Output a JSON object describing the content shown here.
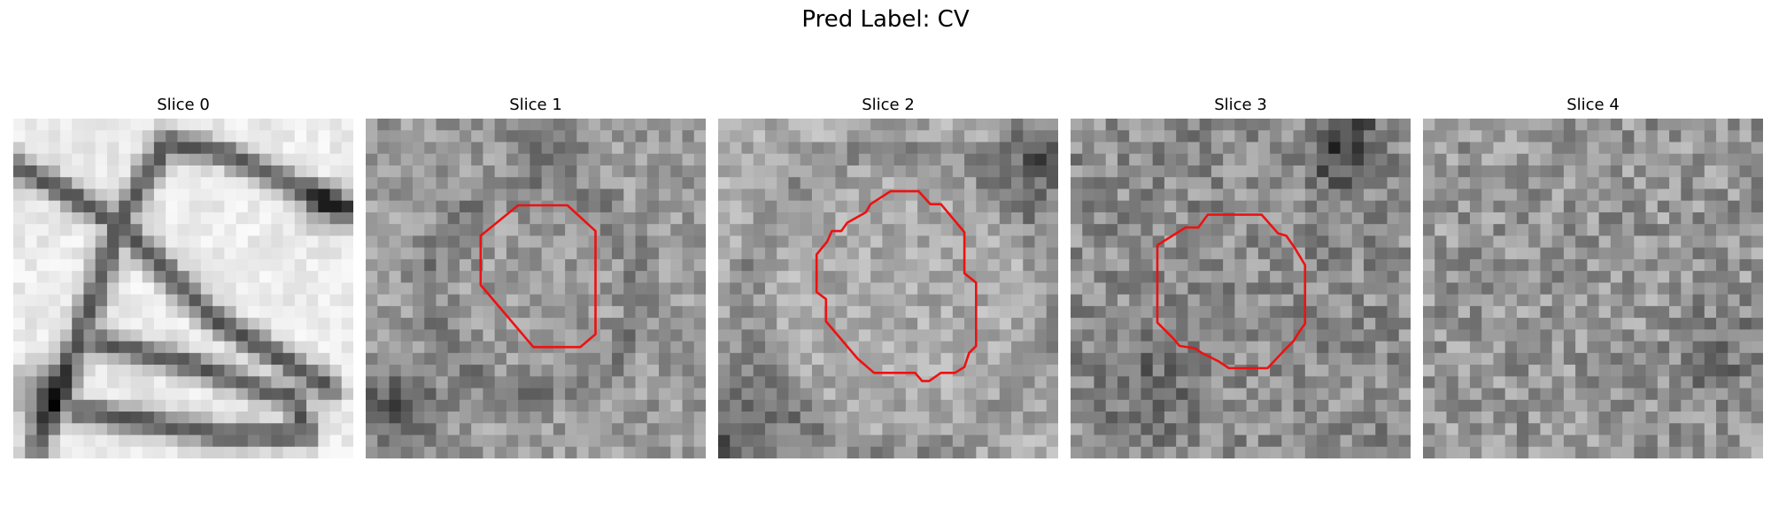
{
  "figure": {
    "suptitle": "Pred Label: CV"
  },
  "panels": [
    {
      "title": "Slice 0",
      "has_contour": false,
      "contour_color": "#ee1111"
    },
    {
      "title": "Slice 1",
      "has_contour": true,
      "contour_color": "#ee1111"
    },
    {
      "title": "Slice 2",
      "has_contour": true,
      "contour_color": "#ee1111"
    },
    {
      "title": "Slice 3",
      "has_contour": true,
      "contour_color": "#ee1111"
    },
    {
      "title": "Slice 4",
      "has_contour": false,
      "contour_color": "#ee1111"
    }
  ],
  "colormap": "grayscale"
}
